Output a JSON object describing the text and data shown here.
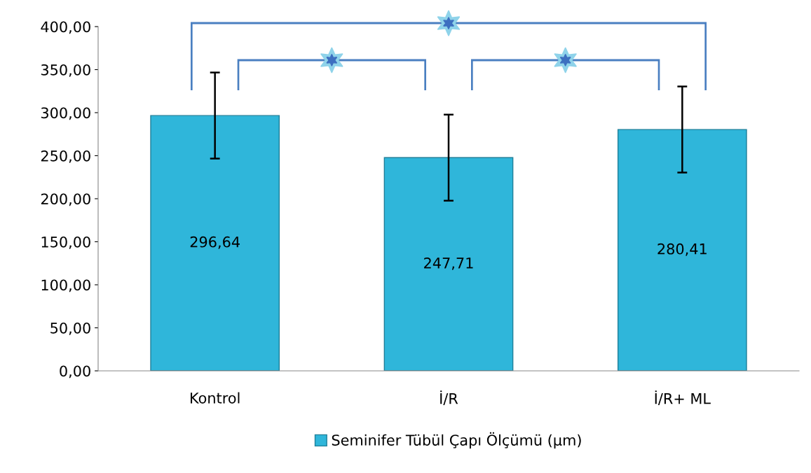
{
  "chart_data": {
    "type": "bar",
    "categories": [
      "Kontrol",
      "İ/R",
      "İ/R+ ML"
    ],
    "series": [
      {
        "name": "Seminifer Tübül Çapı Ölçümü (µm)",
        "color": "#2fb6da",
        "values": [
          296.64,
          247.71,
          280.41
        ],
        "errors": [
          50,
          50,
          50
        ],
        "value_labels": [
          "296,64",
          "247,71",
          "280,41"
        ]
      }
    ],
    "ylim": [
      0,
      400
    ],
    "yticks": [
      {
        "value": 0,
        "label": "0,00"
      },
      {
        "value": 50,
        "label": "50,00"
      },
      {
        "value": 100,
        "label": "100,00"
      },
      {
        "value": 150,
        "label": "150,00"
      },
      {
        "value": 200,
        "label": "200,00"
      },
      {
        "value": 250,
        "label": "250,00"
      },
      {
        "value": 300,
        "label": "300,00"
      },
      {
        "value": 350,
        "label": "350,00"
      },
      {
        "value": 400,
        "label": "400,00"
      }
    ],
    "grid": false,
    "legend": "bottom"
  }
}
